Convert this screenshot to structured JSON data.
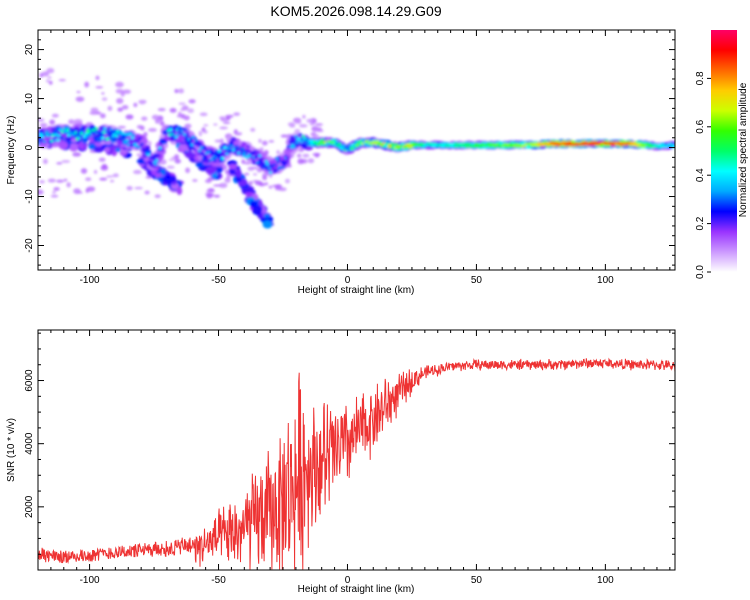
{
  "figure_title": "KOM5.2026.098.14.29.G09",
  "chart_data": [
    {
      "type": "heatmap",
      "title": "KOM5.2026.098.14.29.G09",
      "xlabel": "Height of straight line (km)",
      "ylabel": "Frequency (Hz)",
      "xlim": [
        -120,
        127
      ],
      "ylim": [
        -25,
        24
      ],
      "xticks": [
        -100,
        -50,
        0,
        50,
        100
      ],
      "yticks": [
        -20,
        -10,
        0,
        10,
        20
      ],
      "xtick_labels": [
        "-100",
        "-50",
        "0",
        "50",
        "100"
      ],
      "ytick_labels": [
        "-20",
        "-10",
        "0",
        "10",
        "20"
      ],
      "colorbar": {
        "label": "Normalized spectral amplitude",
        "range": [
          0.0,
          1.0
        ],
        "ticks": [
          0.0,
          0.2,
          0.4,
          0.6,
          0.8
        ],
        "tick_labels": [
          "0.0",
          "0.2",
          "0.4",
          "0.6",
          "0.8"
        ],
        "colormap": [
          "#ffffff",
          "#cc99ff",
          "#9933ff",
          "#0000ff",
          "#00aaff",
          "#00ffff",
          "#00ff66",
          "#33ff00",
          "#ccff00",
          "#ffcc00",
          "#ff6600",
          "#ff0000",
          "#ff0066"
        ]
      },
      "ridge": {
        "description_points_x": [
          -118,
          -110,
          -100,
          -90,
          -80,
          -75,
          -70,
          -65,
          -60,
          -55,
          -50,
          -45,
          -40,
          -35,
          -30,
          -25,
          -20,
          -15,
          -10,
          -5,
          0,
          5,
          10,
          15,
          20,
          25,
          30,
          40,
          50,
          60,
          70,
          80,
          90,
          100,
          110,
          120,
          127
        ],
        "frequency_hz": [
          2.0,
          3.0,
          3.0,
          2.5,
          1.0,
          -3.5,
          3.0,
          3.0,
          1.0,
          -1.5,
          -2.0,
          0.5,
          -0.5,
          -2.0,
          -4.0,
          -3.0,
          2.0,
          1.0,
          1.0,
          1.0,
          -0.5,
          1.0,
          1.0,
          0.5,
          0.0,
          0.5,
          0.5,
          0.5,
          0.5,
          0.5,
          0.5,
          0.8,
          0.8,
          0.8,
          0.8,
          0.3,
          0.5
        ],
        "amplitude": [
          0.35,
          0.35,
          0.4,
          0.35,
          0.3,
          0.3,
          0.35,
          0.35,
          0.3,
          0.3,
          0.35,
          0.3,
          0.3,
          0.3,
          0.3,
          0.3,
          0.3,
          0.4,
          0.55,
          0.5,
          0.45,
          0.5,
          0.55,
          0.6,
          0.6,
          0.65,
          0.45,
          0.45,
          0.55,
          0.6,
          0.65,
          0.85,
          0.9,
          0.9,
          0.8,
          0.45,
          0.4
        ]
      },
      "branches": [
        {
          "x": [
            -118,
            -105,
            -95,
            -85
          ],
          "frequency_hz": [
            1.5,
            1.0,
            0.5,
            -0.5
          ]
        },
        {
          "x": [
            -80,
            -75,
            -70,
            -65
          ],
          "frequency_hz": [
            -3.0,
            -4.5,
            -6.5,
            -8.0
          ]
        },
        {
          "x": [
            -65,
            -60,
            -55,
            -50
          ],
          "frequency_hz": [
            1.0,
            -1.0,
            -3.5,
            -5.0
          ]
        },
        {
          "x": [
            -45,
            -40,
            -35,
            -30
          ],
          "frequency_hz": [
            -4.0,
            -8.0,
            -12.0,
            -15.5
          ]
        }
      ]
    },
    {
      "type": "line",
      "xlabel": "Height of straight line (km)",
      "ylabel": "SNR (10 * v/v)",
      "xlim": [
        -120,
        127
      ],
      "ylim": [
        0,
        7600
      ],
      "xticks": [
        -100,
        -50,
        0,
        50,
        100
      ],
      "yticks": [
        2000,
        4000,
        6000
      ],
      "xtick_labels": [
        "-100",
        "-50",
        "0",
        "50",
        "100"
      ],
      "ytick_labels": [
        "2000",
        "4000",
        "6000"
      ],
      "color": "#ee3333",
      "series": [
        {
          "name": "SNR",
          "x": [
            -120,
            -110,
            -100,
            -90,
            -80,
            -70,
            -60,
            -55,
            -50,
            -45,
            -40,
            -35,
            -30,
            -25,
            -20,
            -17,
            -15,
            -10,
            -5,
            0,
            5,
            10,
            15,
            20,
            25,
            30,
            40,
            50,
            60,
            70,
            80,
            90,
            100,
            110,
            120,
            127
          ],
          "mean": [
            400,
            350,
            400,
            500,
            550,
            600,
            700,
            800,
            1000,
            1100,
            1300,
            1600,
            1800,
            2200,
            2700,
            3200,
            3300,
            3400,
            3700,
            4000,
            4400,
            4800,
            5200,
            5600,
            6000,
            6250,
            6450,
            6500,
            6500,
            6500,
            6500,
            6550,
            6550,
            6500,
            6500,
            6450
          ],
          "spread": [
            500,
            400,
            400,
            400,
            450,
            500,
            600,
            800,
            1000,
            1300,
            1600,
            2000,
            2400,
            2800,
            3800,
            4200,
            2500,
            2400,
            2100,
            1600,
            1400,
            1300,
            1200,
            700,
            500,
            250,
            200,
            200,
            200,
            200,
            200,
            200,
            200,
            200,
            200,
            200
          ]
        }
      ]
    }
  ]
}
